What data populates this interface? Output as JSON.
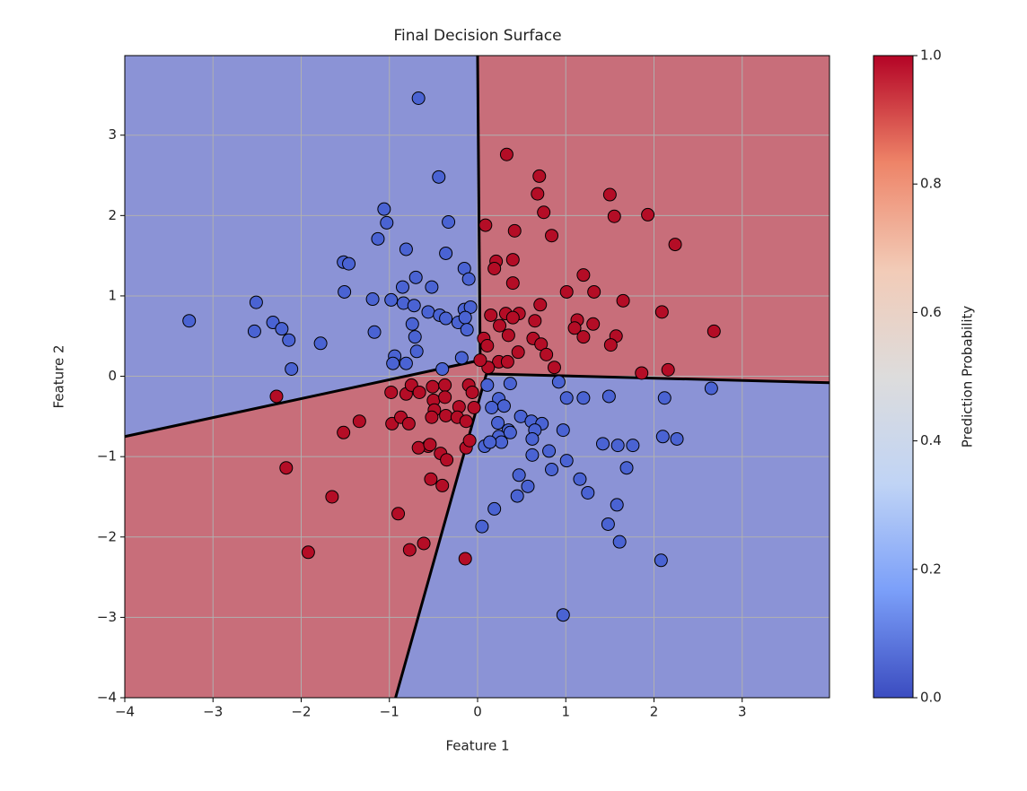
{
  "chart_data": {
    "type": "scatter",
    "title": "Final Decision Surface",
    "x_label": "Feature 1",
    "y_label": "Feature 2",
    "xlim": [
      -4,
      3.99
    ],
    "ylim": [
      -4,
      3.99
    ],
    "grid": true,
    "xticks": [
      {
        "value": -4,
        "label": "−4"
      },
      {
        "value": -3,
        "label": "−3"
      },
      {
        "value": -2,
        "label": "−2"
      },
      {
        "value": -1,
        "label": "−1"
      },
      0,
      1,
      2,
      3
    ],
    "yticks": [
      {
        "value": -4,
        "label": "−4"
      },
      {
        "value": -3,
        "label": "−3"
      },
      {
        "value": -2,
        "label": "−2"
      },
      {
        "value": -1,
        "label": "−1"
      },
      0,
      1,
      2,
      3
    ],
    "regions": [
      {
        "color": "#8b93d6",
        "x": [
          -4,
          0,
          0.03,
          -4
        ],
        "y": [
          3.99,
          3.99,
          0.2,
          -0.75
        ]
      },
      {
        "color": "#c86e7a",
        "x": [
          0,
          3.99,
          3.99,
          0.1,
          0.03
        ],
        "y": [
          3.99,
          3.99,
          -0.08,
          0.03,
          0.2
        ]
      },
      {
        "color": "#8b93d6",
        "x": [
          3.99,
          3.99,
          -0.93,
          0.1
        ],
        "y": [
          -0.08,
          -4,
          -4,
          0.03
        ]
      },
      {
        "color": "#c86e7a",
        "x": [
          -4,
          0.03,
          0.1,
          -0.93,
          -4
        ],
        "y": [
          -0.75,
          0.2,
          0.03,
          -4,
          -4
        ]
      }
    ],
    "boundaries": [
      {
        "x": [
          0,
          0.03
        ],
        "y": [
          3.99,
          0.2
        ]
      },
      {
        "x": [
          -4,
          0.03
        ],
        "y": [
          -0.75,
          0.2
        ]
      },
      {
        "x": [
          0.1,
          3.99
        ],
        "y": [
          0.03,
          -0.08
        ]
      },
      {
        "x": [
          -0.93,
          0.1
        ],
        "y": [
          -4,
          0.03
        ]
      }
    ],
    "series": [
      {
        "color": "#4a63d3",
        "x": [
          -0.67,
          -0.44,
          -0.33,
          -1.06,
          -1.03,
          -1.13,
          -0.81,
          -0.36,
          -1.52,
          -1.46,
          -0.15,
          -0.1,
          -1.51,
          -1.19,
          -0.98,
          -0.85,
          -0.7,
          -0.52,
          -0.84,
          -0.72,
          -0.56,
          -0.43,
          -0.36,
          -0.22,
          -0.15,
          -0.08,
          -0.14,
          -0.12,
          -2.51,
          -3.27,
          -2.53,
          -2.32,
          -2.22,
          -2.14,
          -1.78,
          -2.11,
          -1.17,
          -0.74,
          -0.71,
          -0.69,
          -0.94,
          -0.96,
          -0.81,
          -0.18,
          -0.4,
          2.65,
          2.12,
          1.49,
          1.2,
          1.01,
          0.92,
          0.37,
          0.11,
          0.24,
          0.3,
          0.16,
          0.49,
          0.61,
          0.73,
          0.65,
          0.97,
          0.35,
          0.23,
          0.24,
          0.27,
          0.37,
          0.62,
          0.08,
          0.14,
          1.42,
          1.59,
          1.76,
          2.1,
          2.26,
          0.62,
          0.81,
          1.01,
          0.84,
          1.16,
          1.69,
          0.47,
          0.57,
          0.45,
          1.25,
          1.58,
          0.19,
          0.05,
          1.48,
          1.61,
          2.08,
          0.97
        ],
        "values": [
          3.46,
          2.48,
          1.92,
          2.08,
          1.91,
          1.71,
          1.58,
          1.53,
          1.42,
          1.4,
          1.34,
          1.21,
          1.05,
          0.96,
          0.95,
          1.11,
          1.23,
          1.11,
          0.91,
          0.88,
          0.8,
          0.76,
          0.72,
          0.67,
          0.83,
          0.86,
          0.73,
          0.58,
          0.92,
          0.69,
          0.56,
          0.67,
          0.59,
          0.45,
          0.41,
          0.09,
          0.55,
          0.65,
          0.49,
          0.31,
          0.25,
          0.16,
          0.16,
          0.23,
          0.09,
          -0.15,
          -0.27,
          -0.25,
          -0.27,
          -0.27,
          -0.07,
          -0.09,
          -0.11,
          -0.28,
          -0.37,
          -0.39,
          -0.5,
          -0.56,
          -0.59,
          -0.67,
          -0.67,
          -0.67,
          -0.58,
          -0.75,
          -0.82,
          -0.7,
          -0.78,
          -0.87,
          -0.82,
          -0.84,
          -0.86,
          -0.86,
          -0.75,
          -0.78,
          -0.98,
          -0.93,
          -1.05,
          -1.16,
          -1.28,
          -1.14,
          -1.23,
          -1.37,
          -1.49,
          -1.45,
          -1.6,
          -1.65,
          -1.87,
          -1.84,
          -2.06,
          -2.29,
          -2.97
        ]
      },
      {
        "color": "#b40d26",
        "x": [
          0.33,
          0.7,
          0.68,
          0.75,
          1.5,
          1.55,
          1.93,
          2.24,
          0.09,
          0.42,
          0.84,
          0.21,
          0.4,
          0.19,
          1.2,
          0.4,
          1.32,
          1.01,
          1.65,
          0.71,
          0.32,
          0.47,
          0.4,
          0.15,
          2.09,
          0.65,
          1.13,
          1.31,
          1.1,
          0.25,
          1.57,
          1.2,
          1.51,
          0.35,
          0.07,
          0.11,
          2.68,
          0.63,
          0.72,
          0.46,
          0.78,
          0.24,
          0.34,
          0.87,
          1.86,
          2.16,
          0.12,
          0.03,
          -2.28,
          -2.17,
          -1.52,
          -1.34,
          -0.98,
          -0.97,
          -0.87,
          -0.81,
          -0.75,
          -0.66,
          -0.51,
          -0.37,
          -0.5,
          -0.37,
          -0.49,
          -0.52,
          -0.36,
          -0.21,
          -0.1,
          -0.23,
          -0.13,
          -0.04,
          -0.06,
          -0.78,
          -0.56,
          -0.67,
          -0.54,
          -0.42,
          -0.35,
          -0.13,
          -0.09,
          -0.53,
          -0.4,
          -1.65,
          -0.9,
          -1.92,
          -0.61,
          -0.77,
          -0.14
        ],
        "values": [
          2.76,
          2.49,
          2.27,
          2.04,
          2.26,
          1.99,
          2.01,
          1.64,
          1.88,
          1.81,
          1.75,
          1.43,
          1.45,
          1.34,
          1.26,
          1.16,
          1.05,
          1.05,
          0.94,
          0.89,
          0.78,
          0.78,
          0.73,
          0.76,
          0.8,
          0.69,
          0.7,
          0.65,
          0.6,
          0.63,
          0.5,
          0.49,
          0.39,
          0.51,
          0.47,
          0.38,
          0.56,
          0.47,
          0.4,
          0.3,
          0.27,
          0.18,
          0.18,
          0.11,
          0.04,
          0.08,
          0.11,
          0.2,
          -0.25,
          -1.14,
          -0.7,
          -0.56,
          -0.2,
          -0.59,
          -0.51,
          -0.22,
          -0.11,
          -0.2,
          -0.13,
          -0.11,
          -0.3,
          -0.26,
          -0.42,
          -0.51,
          -0.49,
          -0.38,
          -0.11,
          -0.51,
          -0.56,
          -0.39,
          -0.2,
          -0.59,
          -0.87,
          -0.89,
          -0.85,
          -0.96,
          -1.04,
          -0.89,
          -0.8,
          -1.28,
          -1.36,
          -1.5,
          -1.71,
          -2.19,
          -2.08,
          -2.16,
          -2.27
        ]
      }
    ],
    "colorbar": {
      "label": "Prediction Probability",
      "lim": [
        0,
        1
      ],
      "colors": [
        "#3b4cc0",
        "#7b9ff9",
        "#c0d4f5",
        "#dddcdc",
        "#f2cbb7",
        "#ee8468",
        "#b40426"
      ],
      "ticks": [
        {
          "value": 0,
          "label": "0.0"
        },
        {
          "value": 0.2,
          "label": "0.2"
        },
        {
          "value": 0.4,
          "label": "0.4"
        },
        {
          "value": 0.6,
          "label": "0.6"
        },
        {
          "value": 0.8,
          "label": "0.8"
        },
        {
          "value": 1,
          "label": "1.0"
        }
      ]
    }
  }
}
